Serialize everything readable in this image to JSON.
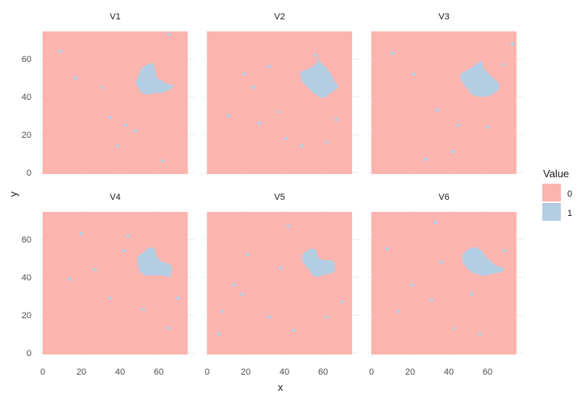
{
  "chart_data": {
    "type": "heatmap",
    "facet_layout": "2x3 grid",
    "xlabel": "x",
    "ylabel": "y",
    "xlim": [
      0,
      75
    ],
    "ylim": [
      0,
      75
    ],
    "x_ticks": [
      0,
      20,
      40,
      60
    ],
    "y_ticks": [
      0,
      20,
      40,
      60
    ],
    "y_tick_labels": [
      "0",
      "20",
      "40",
      "60"
    ],
    "x_tick_labels": [
      "0",
      "20",
      "40",
      "60"
    ],
    "grid": true,
    "legend": {
      "title": "Value",
      "position": "right",
      "entries": [
        {
          "label": "0",
          "color": "#fbb4ae"
        },
        {
          "label": "1",
          "color": "#b3cde3"
        }
      ]
    },
    "colors": {
      "0": "#fbb4ae",
      "1": "#b3cde3"
    },
    "panels": [
      {
        "name": "V1",
        "blob": [
          [
            49,
            50
          ],
          [
            51,
            55
          ],
          [
            54,
            57
          ],
          [
            57,
            58
          ],
          [
            58,
            55
          ],
          [
            59,
            50
          ],
          [
            61,
            49
          ],
          [
            64,
            47
          ],
          [
            68,
            46
          ],
          [
            66,
            44
          ],
          [
            62,
            42
          ],
          [
            58,
            42
          ],
          [
            55,
            41
          ],
          [
            51,
            42
          ],
          [
            50,
            44
          ],
          [
            48,
            47
          ]
        ],
        "specks": [
          [
            9,
            64
          ],
          [
            17,
            50
          ],
          [
            35,
            29
          ],
          [
            39,
            14
          ],
          [
            43,
            25
          ],
          [
            48,
            22
          ],
          [
            31,
            45
          ],
          [
            62,
            6
          ],
          [
            65,
            73
          ]
        ]
      },
      {
        "name": "V2",
        "blob": [
          [
            48,
            53
          ],
          [
            53,
            55
          ],
          [
            57,
            58
          ],
          [
            57,
            61
          ],
          [
            59,
            58
          ],
          [
            62,
            55
          ],
          [
            64,
            52
          ],
          [
            66,
            48
          ],
          [
            68,
            46
          ],
          [
            67,
            44
          ],
          [
            64,
            42
          ],
          [
            60,
            39
          ],
          [
            58,
            40
          ],
          [
            55,
            42
          ],
          [
            52,
            45
          ],
          [
            49,
            48
          ]
        ],
        "specks": [
          [
            11,
            30
          ],
          [
            19,
            52
          ],
          [
            24,
            45
          ],
          [
            27,
            26
          ],
          [
            37,
            32
          ],
          [
            41,
            18
          ],
          [
            49,
            14
          ],
          [
            56,
            62
          ],
          [
            62,
            16
          ],
          [
            67,
            28
          ],
          [
            32,
            56
          ]
        ]
      },
      {
        "name": "V3",
        "blob": [
          [
            46,
            52
          ],
          [
            51,
            55
          ],
          [
            55,
            58
          ],
          [
            57,
            59
          ],
          [
            58,
            55
          ],
          [
            60,
            53
          ],
          [
            63,
            50
          ],
          [
            66,
            47
          ],
          [
            66,
            44
          ],
          [
            64,
            42
          ],
          [
            60,
            40
          ],
          [
            56,
            40
          ],
          [
            52,
            41
          ],
          [
            49,
            45
          ],
          [
            46,
            49
          ]
        ],
        "specks": [
          [
            11,
            63
          ],
          [
            22,
            52
          ],
          [
            28,
            7
          ],
          [
            34,
            33
          ],
          [
            42,
            11
          ],
          [
            45,
            25
          ],
          [
            60,
            24
          ],
          [
            68,
            57
          ],
          [
            73,
            68
          ]
        ]
      },
      {
        "name": "V4",
        "blob": [
          [
            49,
            51
          ],
          [
            53,
            54
          ],
          [
            55,
            56
          ],
          [
            58,
            55
          ],
          [
            59,
            51
          ],
          [
            62,
            48
          ],
          [
            66,
            47
          ],
          [
            67,
            44
          ],
          [
            66,
            40
          ],
          [
            62,
            41
          ],
          [
            58,
            41
          ],
          [
            53,
            41
          ],
          [
            50,
            43
          ],
          [
            49,
            47
          ]
        ],
        "specks": [
          [
            14,
            39
          ],
          [
            20,
            63
          ],
          [
            35,
            29
          ],
          [
            42,
            54
          ],
          [
            44,
            62
          ],
          [
            52,
            23
          ],
          [
            65,
            13
          ],
          [
            70,
            29
          ],
          [
            27,
            44
          ]
        ]
      },
      {
        "name": "V5",
        "blob": [
          [
            49,
            52
          ],
          [
            53,
            55
          ],
          [
            56,
            55
          ],
          [
            57,
            52
          ],
          [
            58,
            50
          ],
          [
            61,
            49
          ],
          [
            65,
            49
          ],
          [
            66,
            47
          ],
          [
            66,
            43
          ],
          [
            64,
            42
          ],
          [
            60,
            41
          ],
          [
            56,
            40
          ],
          [
            54,
            42
          ],
          [
            51,
            46
          ],
          [
            49,
            49
          ]
        ],
        "specks": [
          [
            8,
            22
          ],
          [
            14,
            36
          ],
          [
            18,
            31
          ],
          [
            21,
            52
          ],
          [
            32,
            19
          ],
          [
            38,
            45
          ],
          [
            42,
            67
          ],
          [
            45,
            12
          ],
          [
            62,
            19
          ],
          [
            70,
            27
          ],
          [
            6,
            10
          ]
        ]
      },
      {
        "name": "V6",
        "blob": [
          [
            47,
            52
          ],
          [
            50,
            55
          ],
          [
            54,
            56
          ],
          [
            57,
            54
          ],
          [
            59,
            51
          ],
          [
            62,
            48
          ],
          [
            65,
            46
          ],
          [
            69,
            45
          ],
          [
            68,
            43
          ],
          [
            64,
            42
          ],
          [
            60,
            41
          ],
          [
            57,
            41
          ],
          [
            53,
            42
          ],
          [
            50,
            44
          ],
          [
            47,
            48
          ]
        ],
        "specks": [
          [
            8,
            55
          ],
          [
            14,
            22
          ],
          [
            21,
            36
          ],
          [
            31,
            28
          ],
          [
            36,
            48
          ],
          [
            43,
            13
          ],
          [
            52,
            31
          ],
          [
            56,
            10
          ],
          [
            69,
            54
          ],
          [
            33,
            69
          ]
        ]
      }
    ]
  }
}
